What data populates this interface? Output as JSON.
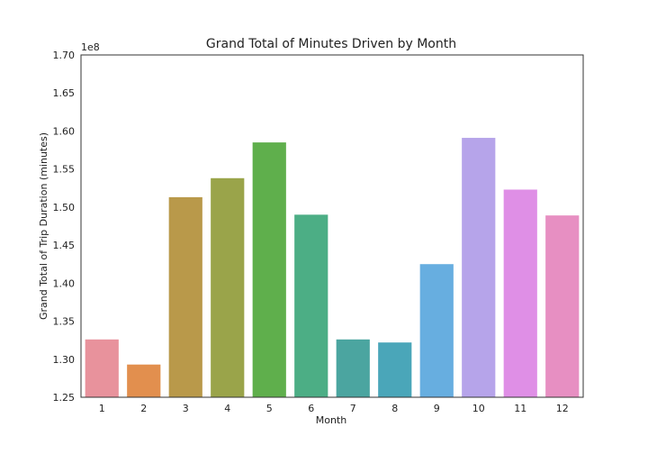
{
  "chart_data": {
    "type": "bar",
    "title": "Grand Total of Minutes Driven by Month",
    "xlabel": "Month",
    "ylabel": "Grand Total of Trip Duration (minutes)",
    "y_offset_label": "1e8",
    "y_scale": 100000000,
    "ylim": [
      1.25,
      1.7
    ],
    "yticks": [
      "1.25",
      "1.30",
      "1.35",
      "1.40",
      "1.45",
      "1.50",
      "1.55",
      "1.60",
      "1.65",
      "1.70"
    ],
    "categories": [
      "1",
      "2",
      "3",
      "4",
      "5",
      "6",
      "7",
      "8",
      "9",
      "10",
      "11",
      "12"
    ],
    "values": [
      1.326,
      1.293,
      1.513,
      1.538,
      1.585,
      1.49,
      1.326,
      1.322,
      1.425,
      1.591,
      1.523,
      1.489
    ],
    "colors": [
      "#e8929c",
      "#e28f4e",
      "#b9994a",
      "#9aa44a",
      "#5faf4c",
      "#4cae85",
      "#4ba5a0",
      "#4aa6b9",
      "#67aee0",
      "#b6a4ea",
      "#df8fe6",
      "#e78fc2"
    ],
    "grid": false,
    "legend": "none"
  }
}
